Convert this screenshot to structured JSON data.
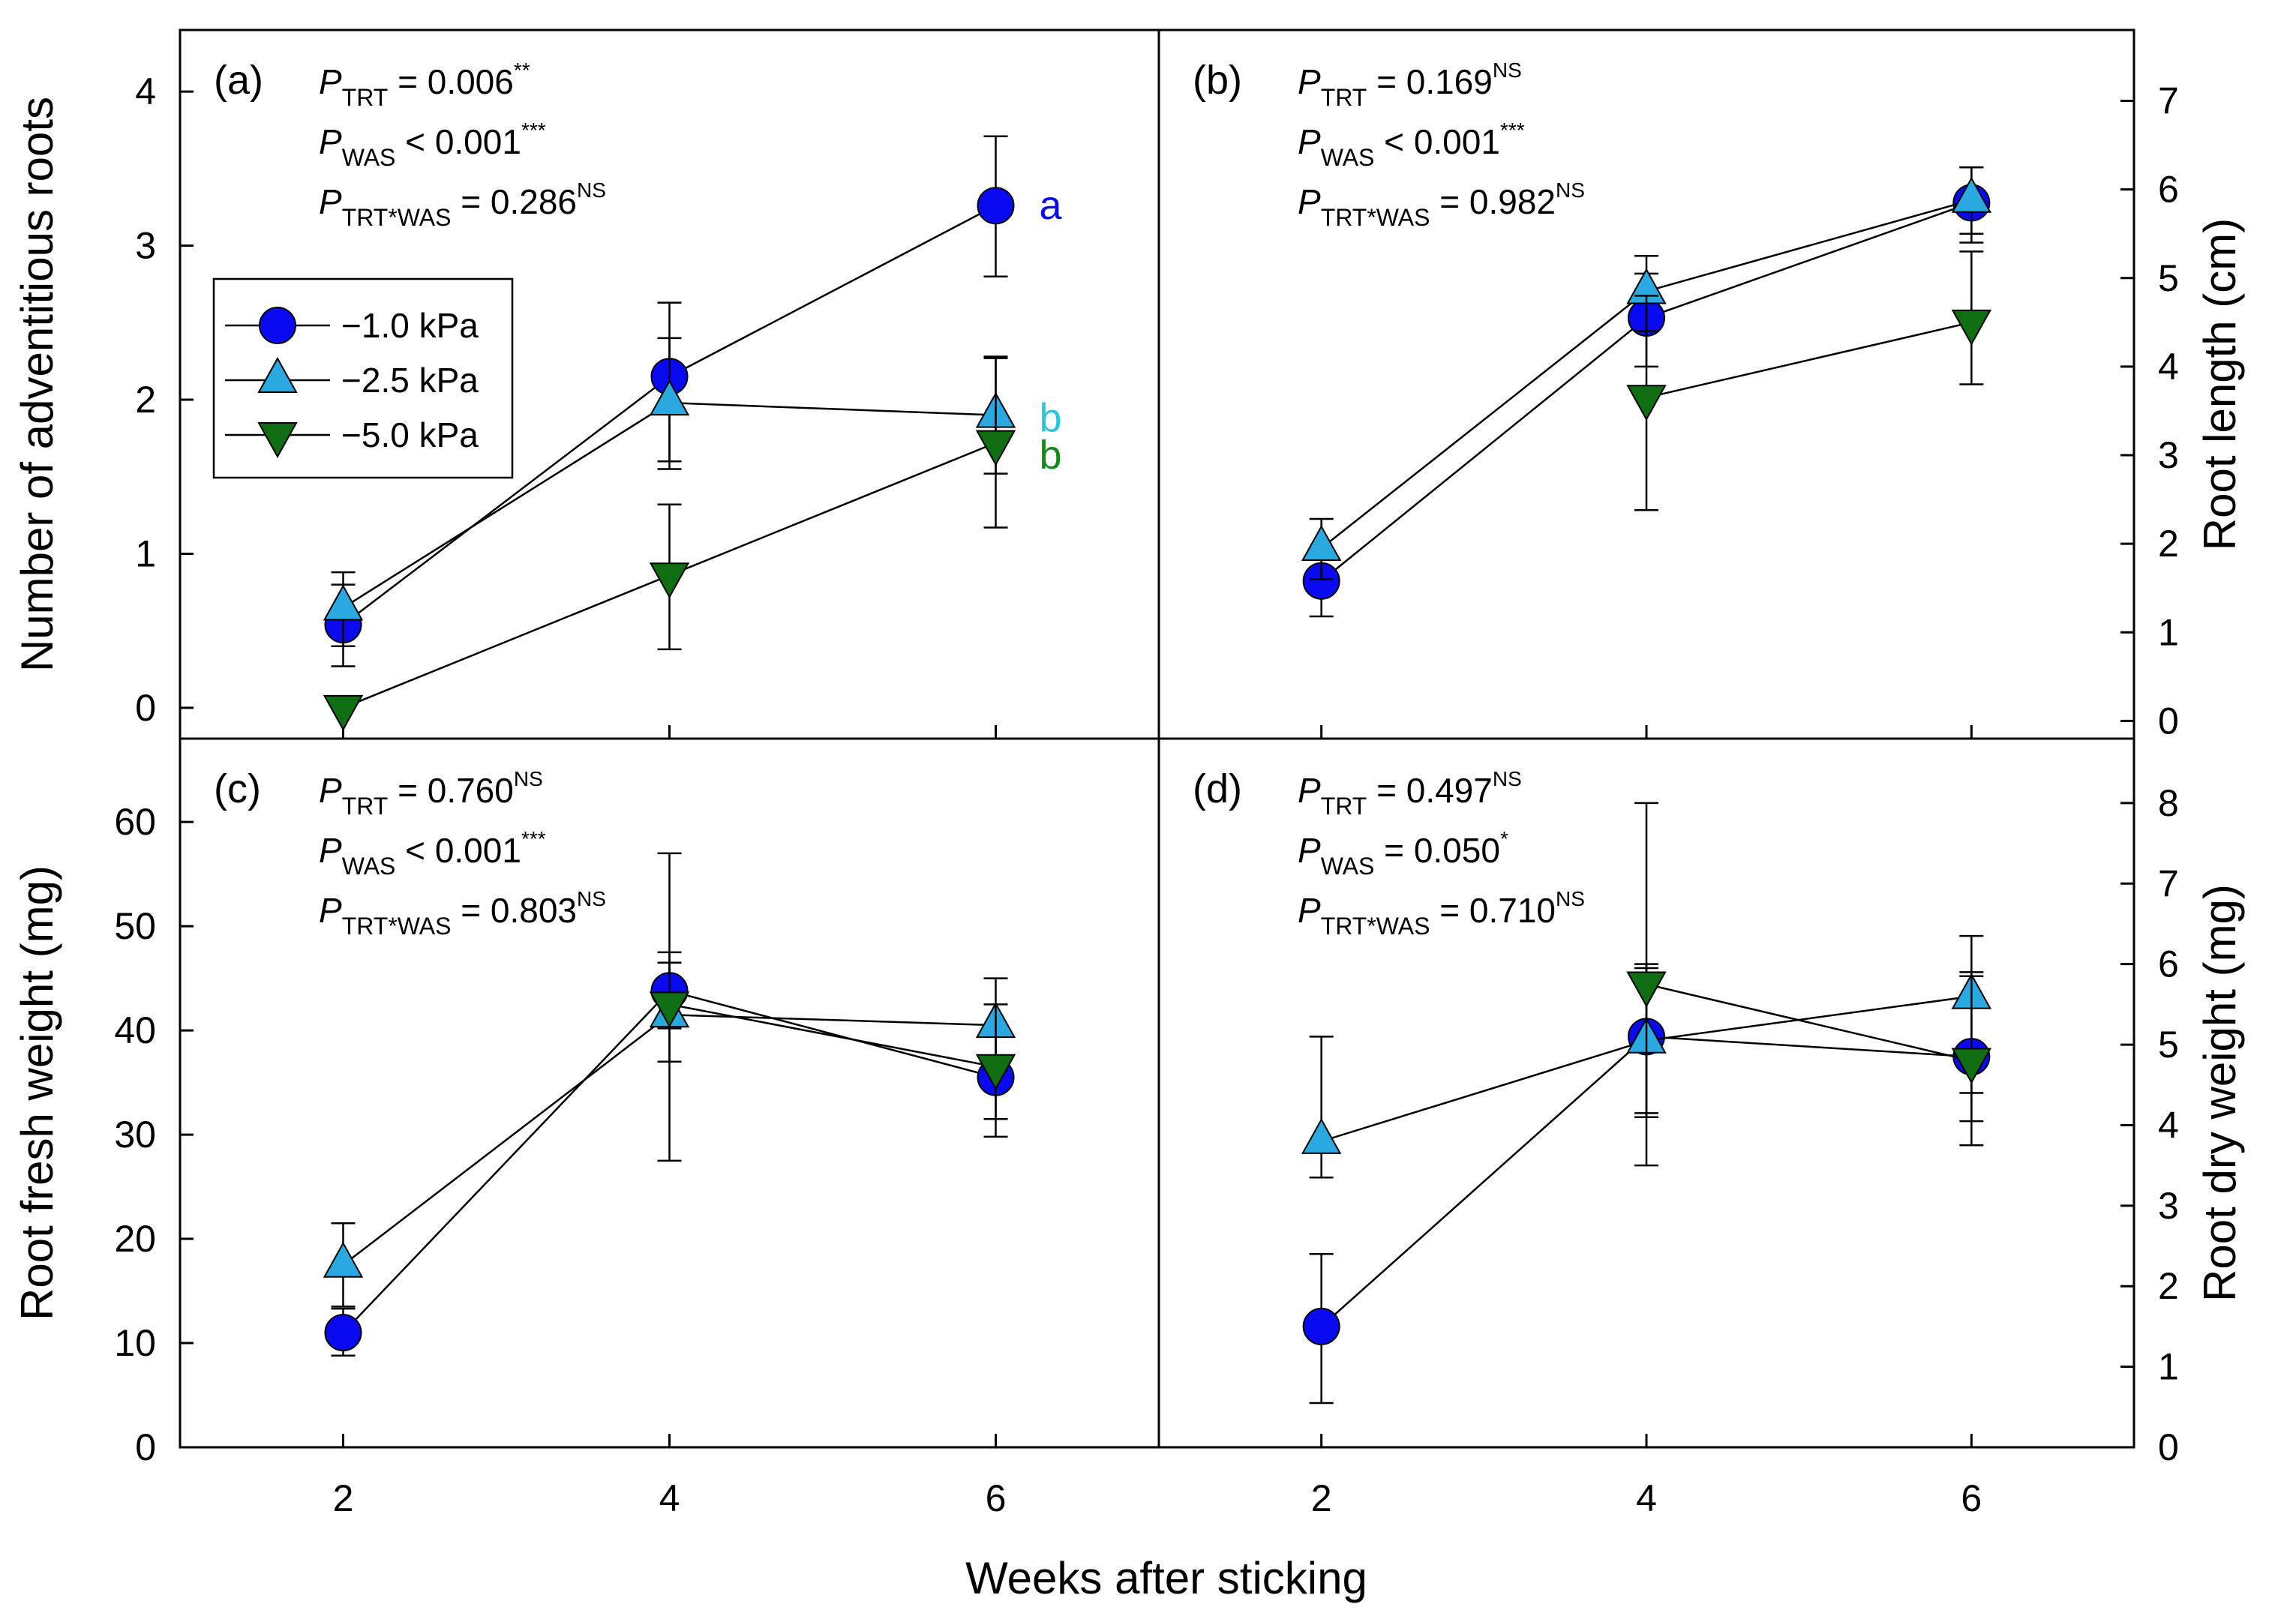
{
  "figure": {
    "xlabel": "Weeks after sticking",
    "colors": {
      "circle": "#0a0af0",
      "triangle_up": "#29a9df",
      "triangle_down": "#0f6e12",
      "sig_b_cyan": "#29c6df",
      "sig_b_green": "#118a18"
    },
    "legend": {
      "entries": [
        {
          "label": "−1.0 kPa",
          "marker": "circle-icon"
        },
        {
          "label": "−2.5 kPa",
          "marker": "triangle-up-icon"
        },
        {
          "label": "−5.0 kPa",
          "marker": "triangle-down-icon"
        }
      ]
    }
  },
  "chart_data": [
    {
      "type": "line",
      "panel": "(a)",
      "ylabel": "Number of adventitious roots",
      "y_axis_side": "left",
      "ylim": [
        -0.2,
        4.4
      ],
      "yticks": [
        0,
        1,
        2,
        3,
        4
      ],
      "x": [
        2,
        4,
        6
      ],
      "xlim": [
        1,
        7
      ],
      "xticks": [
        2,
        4,
        6
      ],
      "show_x_ticklabels": false,
      "stats": [
        {
          "main": "P",
          "sub": "TRT",
          "value": " = 0.006",
          "sup": "**"
        },
        {
          "main": "P",
          "sub": "WAS",
          "value": " < 0.001",
          "sup": "***"
        },
        {
          "main": "P",
          "sub": "TRT*WAS",
          "value": " = 0.286",
          "sup": "NS"
        }
      ],
      "significance": [
        {
          "text": "a",
          "x": 6,
          "y": 3.26,
          "color": "#0a0af0"
        },
        {
          "text": "b",
          "x": 6,
          "y": 1.88,
          "color": "#29c6df"
        },
        {
          "text": "b",
          "x": 6,
          "y": 1.64,
          "color": "#118a18"
        }
      ],
      "series": [
        {
          "name": "−1.0 kPa",
          "marker": "circle",
          "values": [
            0.54,
            2.15,
            3.26
          ],
          "err_lo": [
            0.27,
            1.6,
            2.8
          ],
          "err_hi": [
            0.8,
            2.63,
            3.71
          ]
        },
        {
          "name": "−2.5 kPa",
          "marker": "triangle-up",
          "values": [
            0.65,
            1.98,
            1.9
          ],
          "err_lo": [
            0.4,
            1.55,
            1.52
          ],
          "err_hi": [
            0.88,
            2.4,
            2.28
          ]
        },
        {
          "name": "−5.0 kPa",
          "marker": "triangle-down",
          "values": [
            0.0,
            0.86,
            1.72
          ],
          "err_lo": [
            0.0,
            0.38,
            1.17
          ],
          "err_hi": [
            0.0,
            1.32,
            2.27
          ]
        }
      ]
    },
    {
      "type": "line",
      "panel": "(b)",
      "ylabel": "Root length (cm)",
      "y_axis_side": "right",
      "ylim": [
        -0.2,
        7.8
      ],
      "yticks": [
        0,
        1,
        2,
        3,
        4,
        5,
        6,
        7
      ],
      "x": [
        2,
        4,
        6
      ],
      "xlim": [
        1,
        7
      ],
      "xticks": [
        2,
        4,
        6
      ],
      "show_x_ticklabels": false,
      "stats": [
        {
          "main": "P",
          "sub": "TRT",
          "value": " = 0.169",
          "sup": "NS"
        },
        {
          "main": "P",
          "sub": "WAS",
          "value": " < 0.001",
          "sup": "***"
        },
        {
          "main": "P",
          "sub": "TRT*WAS",
          "value": " = 0.982",
          "sup": "NS"
        }
      ],
      "significance": [],
      "series": [
        {
          "name": "−1.0 kPa",
          "marker": "circle",
          "values": [
            1.58,
            4.55,
            5.85
          ],
          "err_lo": [
            1.18,
            4.0,
            5.4
          ],
          "err_hi": [
            1.95,
            5.05,
            6.25
          ]
        },
        {
          "name": "−2.5 kPa",
          "marker": "triangle-up",
          "values": [
            1.95,
            4.85,
            5.88
          ],
          "err_lo": [
            1.6,
            4.4,
            5.5
          ],
          "err_hi": [
            2.28,
            5.25,
            6.25
          ]
        },
        {
          "name": "−5.0 kPa",
          "marker": "triangle-down",
          "values": [
            null,
            3.65,
            4.5
          ],
          "err_lo": [
            null,
            2.38,
            3.8
          ],
          "err_hi": [
            null,
            4.8,
            5.3
          ]
        }
      ]
    },
    {
      "type": "line",
      "panel": "(c)",
      "ylabel": "Root fresh weight (mg)",
      "y_axis_side": "left",
      "ylim": [
        0,
        68
      ],
      "yticks": [
        0,
        10,
        20,
        30,
        40,
        50,
        60
      ],
      "x": [
        2,
        4,
        6
      ],
      "xlim": [
        1,
        7
      ],
      "xticks": [
        2,
        4,
        6
      ],
      "show_x_ticklabels": true,
      "stats": [
        {
          "main": "P",
          "sub": "TRT",
          "value": " = 0.760",
          "sup": "NS"
        },
        {
          "main": "P",
          "sub": "WAS",
          "value": " < 0.001",
          "sup": "***"
        },
        {
          "main": "P",
          "sub": "TRT*WAS",
          "value": " = 0.803",
          "sup": "NS"
        }
      ],
      "significance": [],
      "series": [
        {
          "name": "−1.0 kPa",
          "marker": "circle",
          "values": [
            11.0,
            43.8,
            35.5
          ],
          "err_lo": [
            8.8,
            40.2,
            31.5
          ],
          "err_hi": [
            13.3,
            47.5,
            40.0
          ]
        },
        {
          "name": "−2.5 kPa",
          "marker": "triangle-up",
          "values": [
            17.5,
            41.5,
            40.5
          ],
          "err_lo": [
            13.5,
            37.0,
            36.2
          ],
          "err_hi": [
            21.5,
            46.5,
            45.0
          ]
        },
        {
          "name": "−5.0 kPa",
          "marker": "triangle-down",
          "values": [
            null,
            42.5,
            36.5
          ],
          "err_lo": [
            null,
            27.5,
            29.8
          ],
          "err_hi": [
            null,
            57.0,
            42.5
          ]
        }
      ]
    },
    {
      "type": "line",
      "panel": "(d)",
      "ylabel": "Root dry weight (mg)",
      "y_axis_side": "right",
      "ylim": [
        0,
        8.8
      ],
      "yticks": [
        0,
        1,
        2,
        3,
        4,
        5,
        6,
        7,
        8
      ],
      "x": [
        2,
        4,
        6
      ],
      "xlim": [
        1,
        7
      ],
      "xticks": [
        2,
        4,
        6
      ],
      "show_x_ticklabels": true,
      "stats": [
        {
          "main": "P",
          "sub": "TRT",
          "value": " = 0.497",
          "sup": "NS"
        },
        {
          "main": "P",
          "sub": "WAS",
          "value": " = 0.050",
          "sup": "*"
        },
        {
          "main": "P",
          "sub": "TRT*WAS",
          "value": " = 0.710",
          "sup": "NS"
        }
      ],
      "significance": [],
      "series": [
        {
          "name": "−1.0 kPa",
          "marker": "circle",
          "values": [
            1.5,
            5.1,
            4.85
          ],
          "err_lo": [
            0.55,
            3.5,
            3.75
          ],
          "err_hi": [
            2.4,
            5.95,
            5.9
          ]
        },
        {
          "name": "−2.5 kPa",
          "marker": "triangle-up",
          "values": [
            3.8,
            5.05,
            5.6
          ],
          "err_lo": [
            3.35,
            4.1,
            4.4
          ],
          "err_hi": [
            5.1,
            6.0,
            6.35
          ]
        },
        {
          "name": "−5.0 kPa",
          "marker": "triangle-down",
          "values": [
            null,
            5.75,
            4.8
          ],
          "err_lo": [
            null,
            4.15,
            4.05
          ],
          "err_hi": [
            null,
            8.0,
            5.85
          ]
        }
      ]
    }
  ]
}
